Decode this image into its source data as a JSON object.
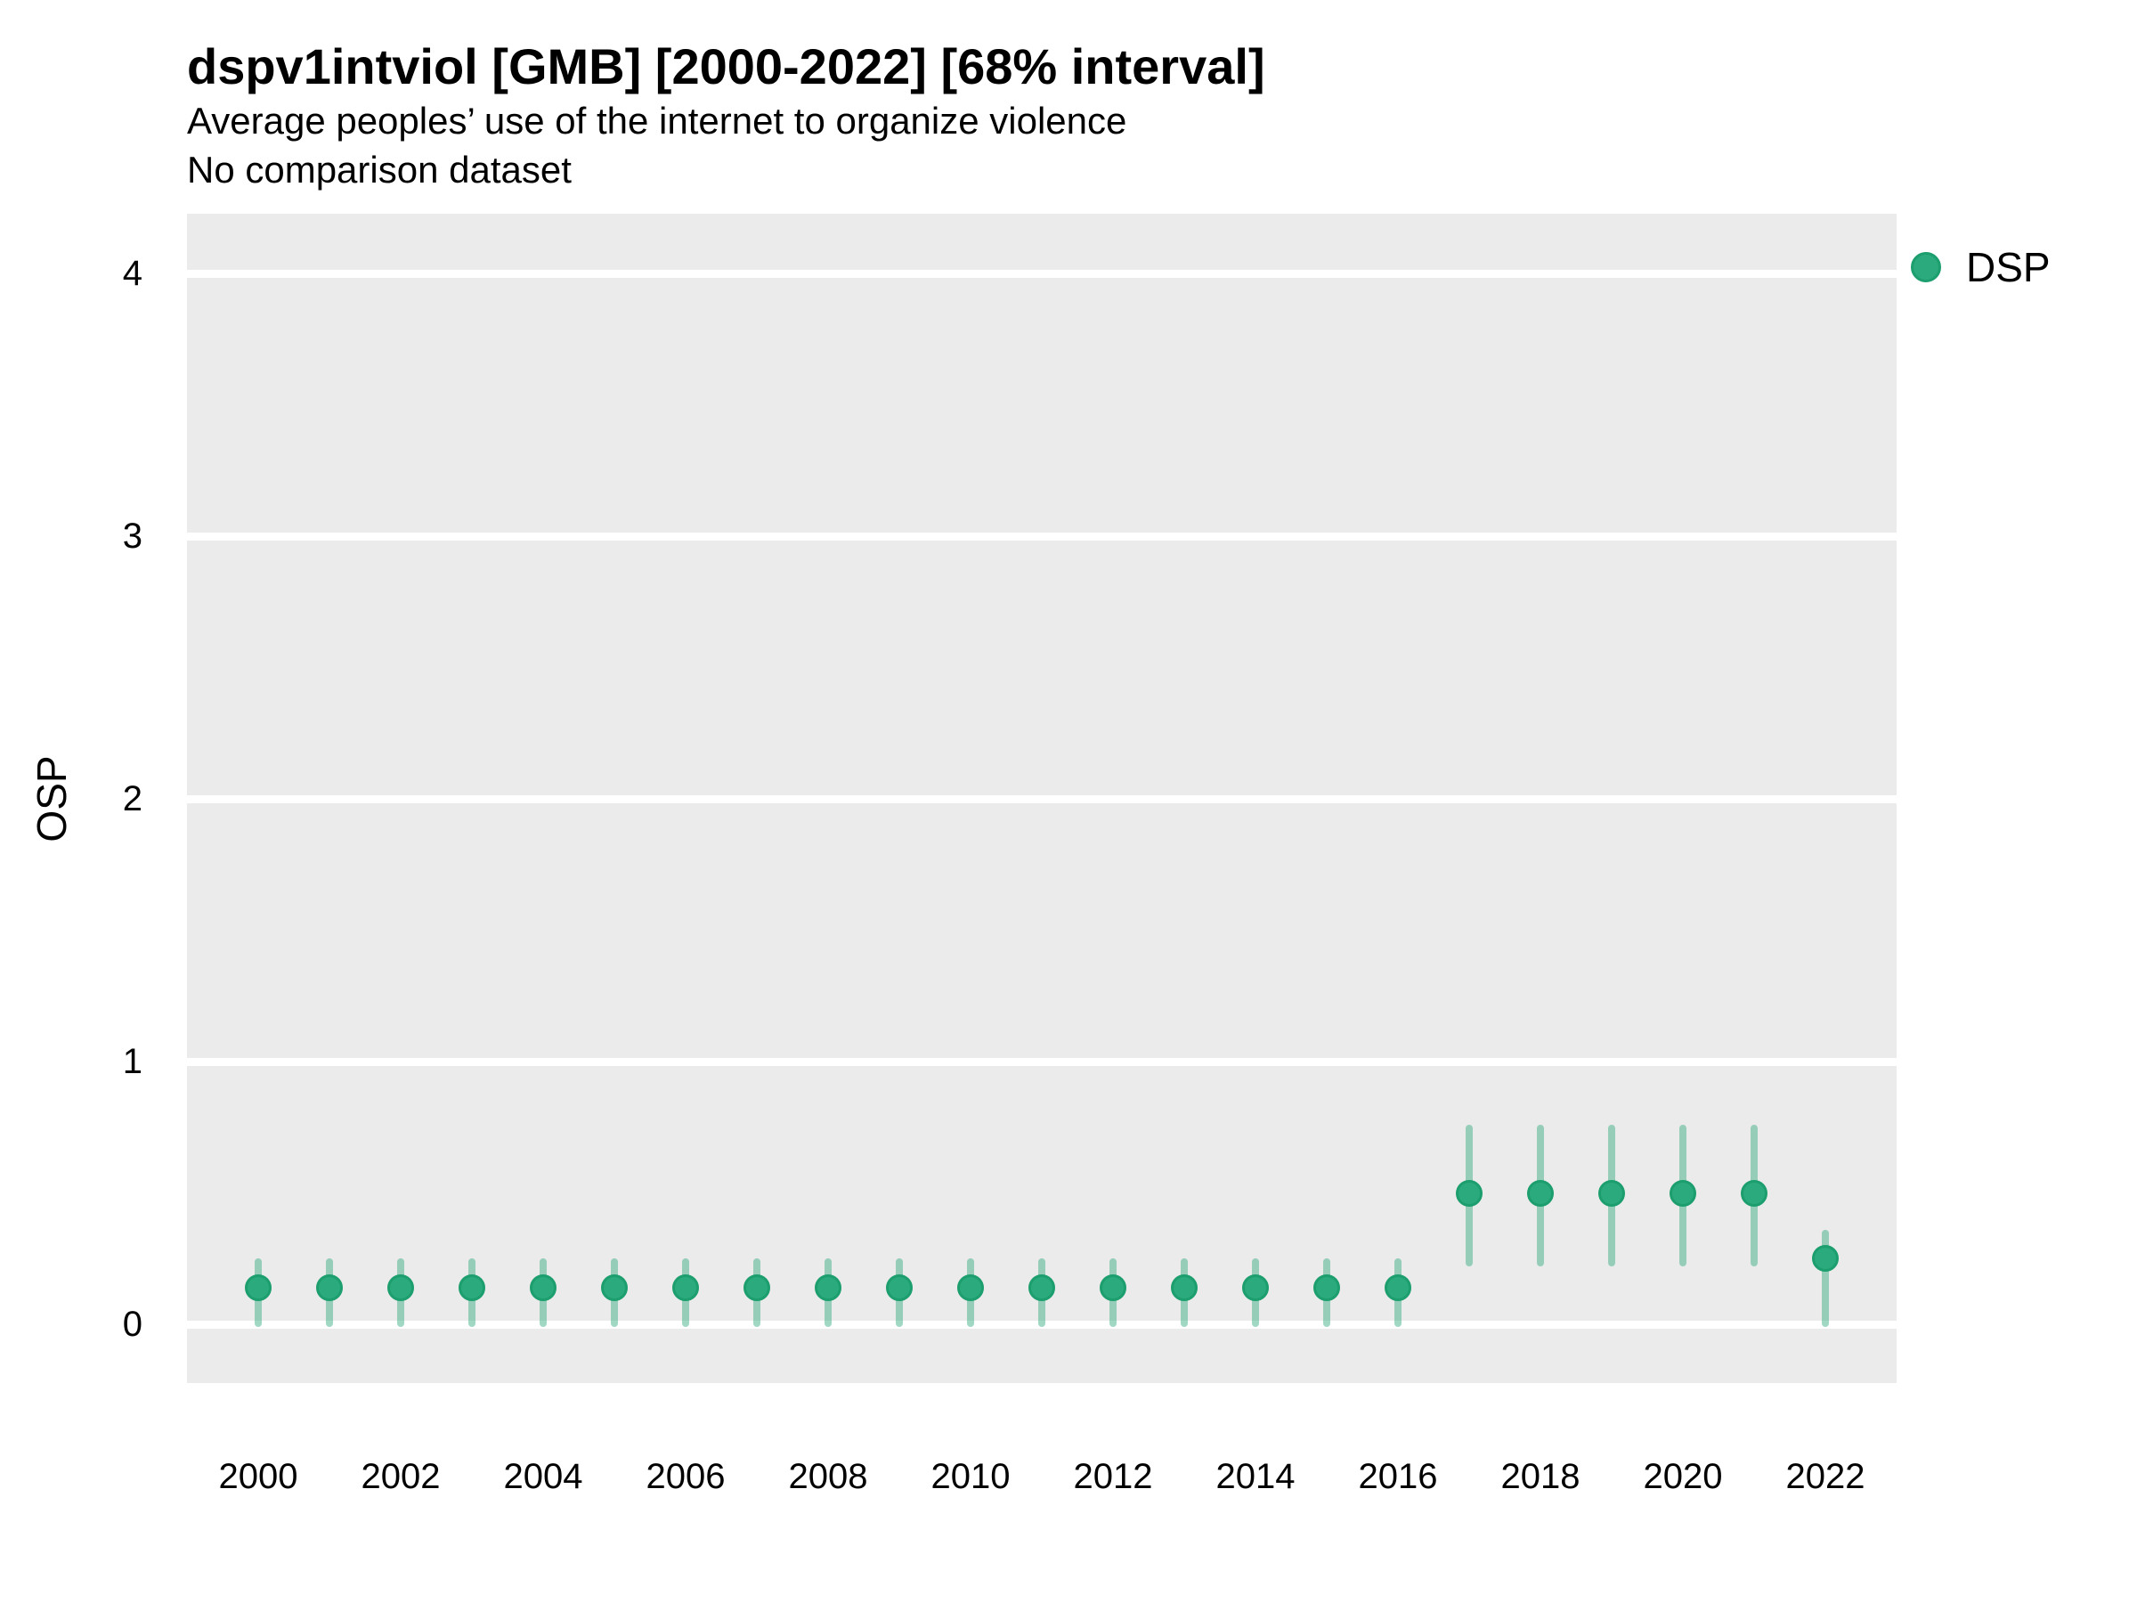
{
  "header": {
    "title": "dspv1intviol [GMB] [2000-2022] [68% interval]",
    "subtitle": "Average peoples’ use of the internet to organize violence",
    "note": "No comparison dataset"
  },
  "axes": {
    "y_label": "OSP",
    "y_ticks": [
      0,
      1,
      2,
      3,
      4
    ],
    "x_ticks": [
      2000,
      2002,
      2004,
      2006,
      2008,
      2010,
      2012,
      2014,
      2016,
      2018,
      2020,
      2022
    ]
  },
  "legend": {
    "label": "DSP",
    "position": "right-top"
  },
  "colors": {
    "point_fill": "#2BAA7E",
    "point_stroke": "#1C9E6E",
    "interval_bar": "rgba(44,169,125,0.45)",
    "panel_background": "#EBEBEB",
    "gridline": "#FFFFFF",
    "text": "#000000"
  },
  "chart_data": {
    "type": "scatter",
    "subtype": "pointrange",
    "title": "dspv1intviol [GMB] [2000-2022] [68% interval]",
    "subtitle": "Average peoples’ use of the internet to organize violence",
    "note": "No comparison dataset",
    "interval_level": "68%",
    "xlabel": "",
    "ylabel": "OSP",
    "ylim": [
      -0.22,
      4.22
    ],
    "xlim": [
      1999,
      2023
    ],
    "grid": "major-horizontal-only",
    "legend_position": "right-top",
    "series": [
      {
        "name": "DSP",
        "points": [
          {
            "x": 2000,
            "y": 0.14,
            "lo": -0.01,
            "hi": 0.25
          },
          {
            "x": 2001,
            "y": 0.14,
            "lo": -0.01,
            "hi": 0.25
          },
          {
            "x": 2002,
            "y": 0.14,
            "lo": -0.01,
            "hi": 0.25
          },
          {
            "x": 2003,
            "y": 0.14,
            "lo": -0.01,
            "hi": 0.25
          },
          {
            "x": 2004,
            "y": 0.14,
            "lo": -0.01,
            "hi": 0.25
          },
          {
            "x": 2005,
            "y": 0.14,
            "lo": -0.01,
            "hi": 0.25
          },
          {
            "x": 2006,
            "y": 0.14,
            "lo": -0.01,
            "hi": 0.25
          },
          {
            "x": 2007,
            "y": 0.14,
            "lo": -0.01,
            "hi": 0.25
          },
          {
            "x": 2008,
            "y": 0.14,
            "lo": -0.01,
            "hi": 0.25
          },
          {
            "x": 2009,
            "y": 0.14,
            "lo": -0.01,
            "hi": 0.25
          },
          {
            "x": 2010,
            "y": 0.14,
            "lo": -0.01,
            "hi": 0.25
          },
          {
            "x": 2011,
            "y": 0.14,
            "lo": -0.01,
            "hi": 0.25
          },
          {
            "x": 2012,
            "y": 0.14,
            "lo": -0.01,
            "hi": 0.25
          },
          {
            "x": 2013,
            "y": 0.14,
            "lo": -0.01,
            "hi": 0.25
          },
          {
            "x": 2014,
            "y": 0.14,
            "lo": -0.01,
            "hi": 0.25
          },
          {
            "x": 2015,
            "y": 0.14,
            "lo": -0.01,
            "hi": 0.25
          },
          {
            "x": 2016,
            "y": 0.14,
            "lo": -0.01,
            "hi": 0.25
          },
          {
            "x": 2017,
            "y": 0.5,
            "lo": 0.22,
            "hi": 0.76
          },
          {
            "x": 2018,
            "y": 0.5,
            "lo": 0.22,
            "hi": 0.76
          },
          {
            "x": 2019,
            "y": 0.5,
            "lo": 0.22,
            "hi": 0.76
          },
          {
            "x": 2020,
            "y": 0.5,
            "lo": 0.22,
            "hi": 0.76
          },
          {
            "x": 2021,
            "y": 0.5,
            "lo": 0.22,
            "hi": 0.76
          },
          {
            "x": 2022,
            "y": 0.25,
            "lo": -0.01,
            "hi": 0.36
          }
        ]
      }
    ]
  }
}
